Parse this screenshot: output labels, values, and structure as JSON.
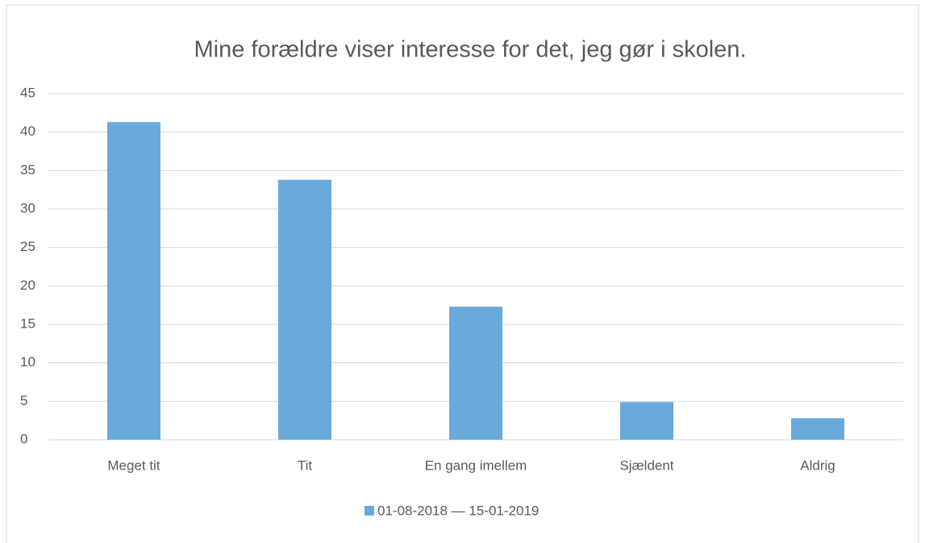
{
  "chart_data": {
    "type": "bar",
    "title": "Mine forældre viser interesse for det, jeg gør i skolen.",
    "categories": [
      "Meget tit",
      "Tit",
      "En gang imellem",
      "Sjældent",
      "Aldrig"
    ],
    "series": [
      {
        "name": "01-08-2018 — 15-01-2019",
        "color": "#6aaadb",
        "values": [
          41.3,
          33.8,
          17.3,
          4.9,
          2.8
        ]
      }
    ],
    "ylim": [
      0,
      45
    ],
    "yticks": [
      0,
      5,
      10,
      15,
      20,
      25,
      30,
      35,
      40,
      45
    ],
    "grid": true,
    "legend": "bottom"
  }
}
